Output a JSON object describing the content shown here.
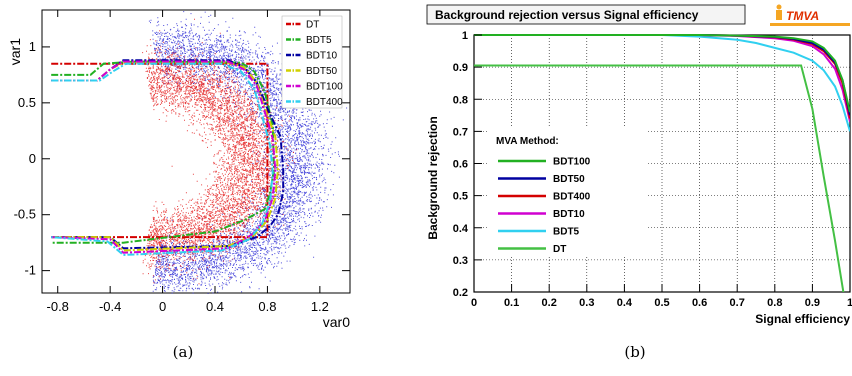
{
  "chart_data": [
    {
      "type": "scatter",
      "xlabel": "var0",
      "ylabel": "var1",
      "xlim": [
        -0.92,
        1.43
      ],
      "ylim": [
        -1.2,
        1.33
      ],
      "xticks": [
        "-0.8",
        "-0.4",
        "0",
        "0.4",
        "0.8",
        "1.2"
      ],
      "yticks": [
        "-1",
        "-0.5",
        "0",
        "0.5",
        "1"
      ],
      "point_colors": {
        "signal": "#e00000",
        "background": "#1010d0"
      },
      "grid": false,
      "legend_position": "top-right",
      "series": [
        {
          "name": "DT",
          "color": "#d40000",
          "dash": "dash-dot",
          "x": [
            -0.85,
            0.8,
            0.8,
            -0.85
          ],
          "y": [
            0.85,
            0.85,
            -0.7,
            -0.7
          ]
        },
        {
          "name": "BDT5",
          "color": "#22b022",
          "dash": "dash-dot",
          "x": [
            -0.85,
            -0.55,
            -0.45,
            -0.2,
            0.6,
            0.7,
            0.78,
            0.84,
            0.85,
            0.82,
            0.78,
            0.62,
            0.4,
            -0.3,
            -0.85
          ],
          "y": [
            0.75,
            0.75,
            0.85,
            0.87,
            0.86,
            0.78,
            0.6,
            0.3,
            -0.1,
            -0.3,
            -0.45,
            -0.55,
            -0.65,
            -0.75,
            -0.75
          ]
        },
        {
          "name": "BDT10",
          "color": "#0000a0",
          "dash": "dash-dot",
          "x": [
            -0.85,
            -0.5,
            -0.4,
            -0.3,
            0.5,
            0.62,
            0.72,
            0.8,
            0.9,
            0.92,
            0.92,
            0.88,
            0.82,
            0.72,
            0.5,
            -0.3,
            -0.4,
            -0.85
          ],
          "y": [
            0.7,
            0.7,
            0.8,
            0.88,
            0.88,
            0.82,
            0.68,
            0.45,
            0.2,
            -0.1,
            -0.3,
            -0.5,
            -0.6,
            -0.7,
            -0.78,
            -0.8,
            -0.7,
            -0.7
          ]
        },
        {
          "name": "BDT50",
          "color": "#d0d000",
          "dash": "dash-dot",
          "x": [
            -0.85,
            -0.5,
            -0.4,
            -0.3,
            0.5,
            0.62,
            0.72,
            0.78,
            0.86,
            0.88,
            0.86,
            0.8,
            0.7,
            0.5,
            -0.3,
            -0.4,
            -0.85
          ],
          "y": [
            0.7,
            0.7,
            0.8,
            0.86,
            0.86,
            0.82,
            0.68,
            0.45,
            0.2,
            -0.1,
            -0.35,
            -0.55,
            -0.68,
            -0.78,
            -0.82,
            -0.7,
            -0.7
          ]
        },
        {
          "name": "BDT100",
          "color": "#d000d0",
          "dash": "dash-dot",
          "x": [
            -0.85,
            -0.5,
            -0.4,
            -0.3,
            0.5,
            0.62,
            0.72,
            0.78,
            0.84,
            0.86,
            0.84,
            0.78,
            0.68,
            0.5,
            -0.3,
            -0.4,
            -0.85
          ],
          "y": [
            0.7,
            0.7,
            0.8,
            0.87,
            0.87,
            0.8,
            0.65,
            0.42,
            0.18,
            -0.1,
            -0.35,
            -0.55,
            -0.68,
            -0.8,
            -0.84,
            -0.72,
            -0.7
          ]
        },
        {
          "name": "BDT400",
          "color": "#30d0f0",
          "dash": "dash-dot",
          "x": [
            -0.85,
            -0.48,
            -0.38,
            -0.28,
            0.45,
            0.6,
            0.7,
            0.76,
            0.82,
            0.84,
            0.82,
            0.76,
            0.66,
            0.45,
            -0.3,
            -0.42,
            -0.85
          ],
          "y": [
            0.7,
            0.7,
            0.78,
            0.85,
            0.85,
            0.78,
            0.62,
            0.38,
            0.12,
            -0.12,
            -0.38,
            -0.58,
            -0.72,
            -0.82,
            -0.86,
            -0.74,
            -0.7
          ]
        }
      ]
    },
    {
      "type": "line",
      "title": "Background rejection versus Signal efficiency",
      "xlabel": "Signal efficiency",
      "ylabel": "Background rejection",
      "xlim": [
        0,
        1
      ],
      "ylim": [
        0.2,
        1
      ],
      "xticks": [
        "0",
        "0.1",
        "0.2",
        "0.3",
        "0.4",
        "0.5",
        "0.6",
        "0.7",
        "0.8",
        "0.9",
        "1"
      ],
      "yticks": [
        "0.2",
        "0.3",
        "0.4",
        "0.5",
        "0.6",
        "0.7",
        "0.8",
        "0.9",
        "1"
      ],
      "grid": true,
      "legend_title": "MVA Method:",
      "legend_position": "center-left",
      "logo": "TMVA",
      "series": [
        {
          "name": "BDT100",
          "color": "#22b022",
          "x": [
            0,
            0.6,
            0.7,
            0.8,
            0.85,
            0.9,
            0.93,
            0.96,
            0.98,
            1.0
          ],
          "y": [
            1.0,
            1.0,
            0.998,
            0.995,
            0.99,
            0.98,
            0.96,
            0.92,
            0.86,
            0.76
          ]
        },
        {
          "name": "BDT50",
          "color": "#0000a0",
          "x": [
            0,
            0.6,
            0.7,
            0.8,
            0.85,
            0.9,
            0.93,
            0.96,
            0.98,
            1.0
          ],
          "y": [
            1.0,
            1.0,
            0.998,
            0.994,
            0.988,
            0.975,
            0.955,
            0.915,
            0.86,
            0.75
          ]
        },
        {
          "name": "BDT400",
          "color": "#d40000",
          "x": [
            0,
            0.6,
            0.7,
            0.8,
            0.85,
            0.9,
            0.93,
            0.96,
            0.98,
            1.0
          ],
          "y": [
            1.0,
            1.0,
            0.998,
            0.993,
            0.986,
            0.972,
            0.95,
            0.91,
            0.85,
            0.74
          ]
        },
        {
          "name": "BDT10",
          "color": "#d000d0",
          "x": [
            0,
            0.6,
            0.7,
            0.8,
            0.85,
            0.9,
            0.93,
            0.96,
            0.98,
            1.0
          ],
          "y": [
            1.0,
            1.0,
            0.997,
            0.99,
            0.982,
            0.965,
            0.94,
            0.895,
            0.83,
            0.73
          ]
        },
        {
          "name": "BDT5",
          "color": "#30d0f0",
          "x": [
            0,
            0.5,
            0.6,
            0.7,
            0.75,
            0.8,
            0.85,
            0.9,
            0.93,
            0.96,
            0.98,
            1.0
          ],
          "y": [
            1.0,
            1.0,
            0.995,
            0.985,
            0.975,
            0.96,
            0.945,
            0.92,
            0.89,
            0.84,
            0.78,
            0.7
          ]
        },
        {
          "name": "DT",
          "color": "#44c044",
          "x": [
            0,
            0.87,
            0.9,
            0.93,
            0.96,
            0.985
          ],
          "y": [
            0.905,
            0.905,
            0.77,
            0.56,
            0.36,
            0.18
          ]
        }
      ]
    }
  ],
  "captions": {
    "a": "(a)",
    "b": "(b)"
  }
}
